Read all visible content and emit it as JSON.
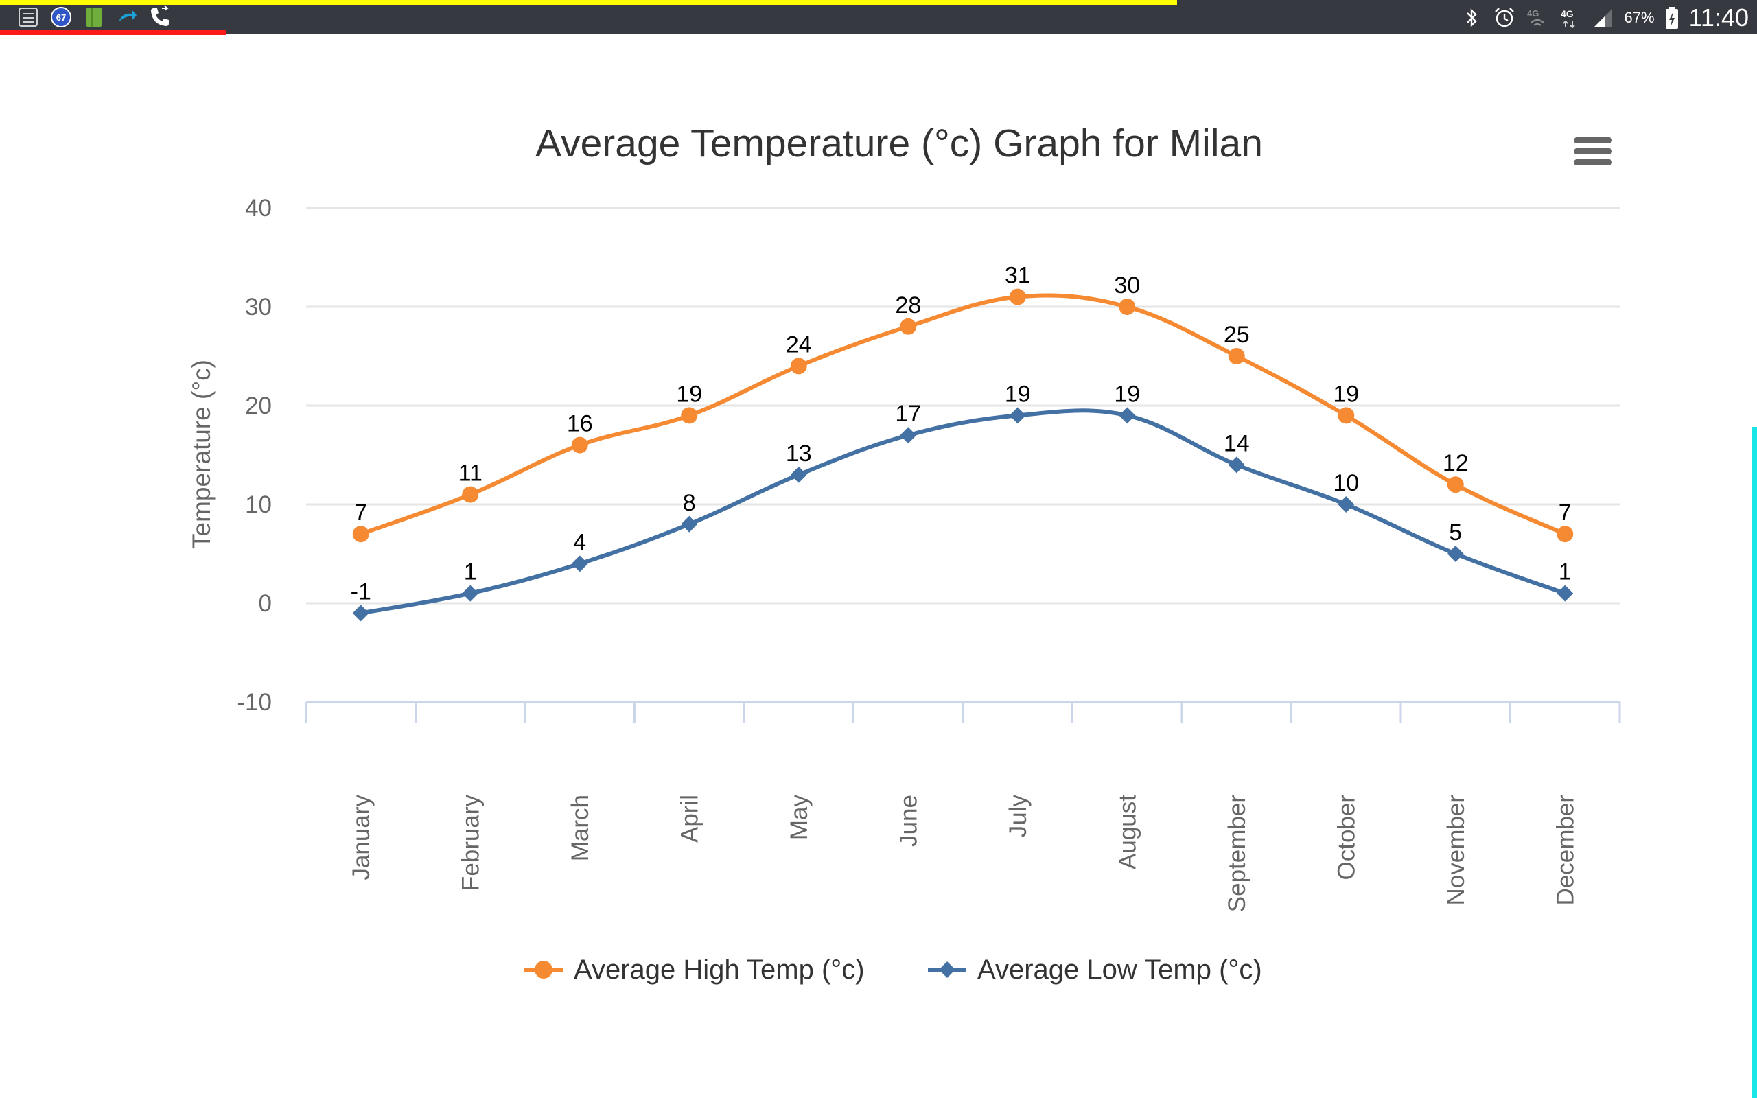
{
  "status_bar": {
    "battery": "67%",
    "time": "11:40",
    "notification_badge": "67",
    "network_labels": [
      "4G",
      "4G"
    ]
  },
  "menu": {
    "icon": "hamburger-menu-icon"
  },
  "colors": {
    "high": "#f58a33",
    "low": "#4471a3",
    "grid": "#e5e5e5",
    "axis": "#ccd6eb",
    "text": "#333333",
    "status_bg": "#363a40"
  },
  "chart_data": {
    "type": "line",
    "title": "Average Temperature (°c) Graph for Milan",
    "xlabel": "",
    "ylabel": "Temperature (°c)",
    "ylim": [
      -10,
      40
    ],
    "yticks": [
      40,
      30,
      20,
      10,
      0,
      -10
    ],
    "grid": true,
    "legend_position": "bottom-center",
    "categories": [
      "January",
      "February",
      "March",
      "April",
      "May",
      "June",
      "July",
      "August",
      "September",
      "October",
      "November",
      "December"
    ],
    "series": [
      {
        "name": "Average High Temp (°c)",
        "marker": "circle",
        "values": [
          7,
          11,
          16,
          19,
          24,
          28,
          31,
          30,
          25,
          19,
          12,
          7
        ]
      },
      {
        "name": "Average Low Temp (°c)",
        "marker": "diamond",
        "values": [
          -1,
          1,
          4,
          8,
          13,
          17,
          19,
          19,
          14,
          10,
          5,
          1
        ]
      }
    ]
  }
}
